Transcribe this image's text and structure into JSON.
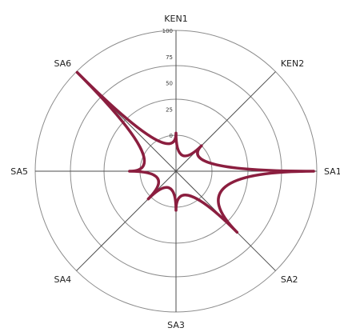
{
  "chart_data": {
    "type": "radar",
    "axes": [
      "KEN1",
      "KEN2",
      "SA1",
      "SA2",
      "SA3",
      "SA4",
      "SA5",
      "SA6"
    ],
    "radial_ticks": [
      "0",
      "25",
      "50",
      "75",
      "100"
    ],
    "rlim": [
      0,
      100
    ],
    "grid": true,
    "series": [
      {
        "values": [
          2,
          0,
          97,
          48,
          3,
          3,
          10,
          99
        ],
        "color": "#8b1e3f"
      }
    ]
  }
}
